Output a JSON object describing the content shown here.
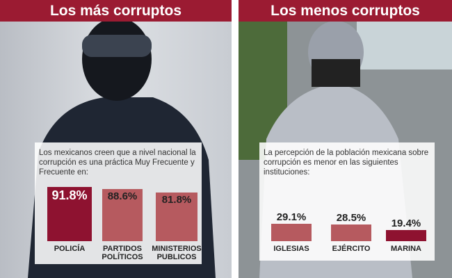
{
  "chart_data": [
    {
      "type": "bar",
      "title": "Los más corruptos",
      "subtitle": "Los mexicanos creen que a nivel nacional la corrupción es una práctica Muy Frecuente y Frecuente en:",
      "categories": [
        "POLICÍA",
        "PARTIDOS POLÍTICOS",
        "MINISTERIOS PUBLICOS"
      ],
      "values": [
        91.8,
        88.6,
        81.8
      ],
      "value_labels": [
        "91.8%",
        "88.6%",
        "81.8%"
      ],
      "colors": [
        "#8e1230",
        "#b65a5f",
        "#b65a5f"
      ]
    },
    {
      "type": "bar",
      "title": "Los menos corruptos",
      "subtitle": "La percepción de la población mexicana sobre corrupción es menor en las siguientes instituciones:",
      "categories": [
        "IGLESIAS",
        "EJÉRCITO",
        "MARINA"
      ],
      "values": [
        29.1,
        28.5,
        19.4
      ],
      "value_labels": [
        "29.1%",
        "28.5%",
        "19.4%"
      ],
      "colors": [
        "#b65a5f",
        "#b65a5f",
        "#8e1230"
      ]
    }
  ]
}
